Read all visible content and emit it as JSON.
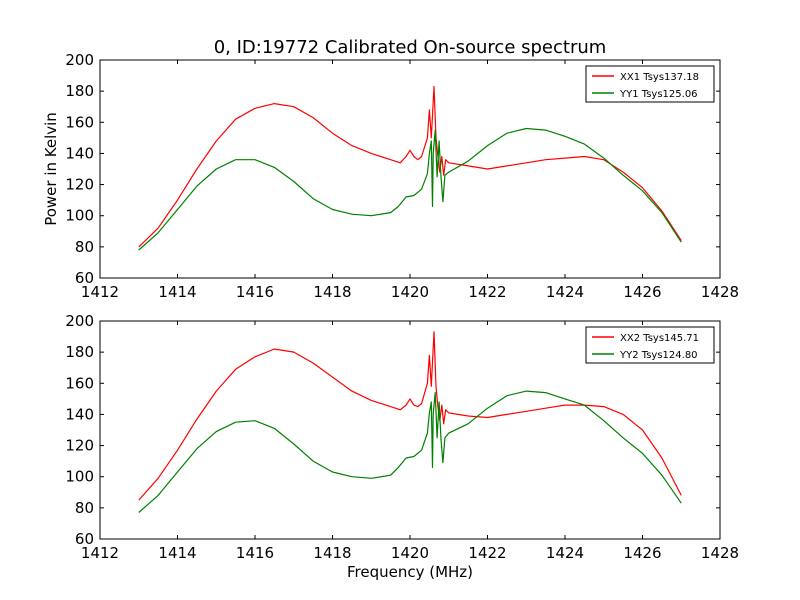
{
  "figure": {
    "title": "0, ID:19772 Calibrated On-source spectrum",
    "xlabel": "Frequency (MHz)",
    "ylabel_top": "Power in Kelvin"
  },
  "chart_data": [
    {
      "type": "line",
      "title": "0, ID:19772 Calibrated On-source spectrum",
      "xlabel": "",
      "ylabel": "Power in Kelvin",
      "xlim": [
        1412,
        1428
      ],
      "ylim": [
        60,
        200
      ],
      "xticks": [
        1412,
        1414,
        1416,
        1418,
        1420,
        1422,
        1424,
        1426,
        1428
      ],
      "yticks": [
        60,
        80,
        100,
        120,
        140,
        160,
        180,
        200
      ],
      "grid": false,
      "legend_position": "top-right",
      "series": [
        {
          "name": "XX1 Tsys137.18",
          "color": "#ff0000",
          "points": [
            [
              1413.0,
              80
            ],
            [
              1413.5,
              92
            ],
            [
              1414.0,
              110
            ],
            [
              1414.5,
              130
            ],
            [
              1415.0,
              148
            ],
            [
              1415.5,
              162
            ],
            [
              1416.0,
              169
            ],
            [
              1416.5,
              172
            ],
            [
              1417.0,
              170
            ],
            [
              1417.5,
              163
            ],
            [
              1418.0,
              153
            ],
            [
              1418.5,
              145
            ],
            [
              1419.0,
              140
            ],
            [
              1419.5,
              136
            ],
            [
              1419.75,
              134
            ],
            [
              1419.9,
              138
            ],
            [
              1420.0,
              142
            ],
            [
              1420.1,
              138
            ],
            [
              1420.2,
              136
            ],
            [
              1420.3,
              138
            ],
            [
              1420.45,
              150
            ],
            [
              1420.5,
              168
            ],
            [
              1420.55,
              150
            ],
            [
              1420.62,
              183
            ],
            [
              1420.67,
              150
            ],
            [
              1420.72,
              138
            ],
            [
              1420.77,
              128
            ],
            [
              1420.82,
              138
            ],
            [
              1420.87,
              126
            ],
            [
              1420.92,
              136
            ],
            [
              1421.0,
              134
            ],
            [
              1421.5,
              132
            ],
            [
              1422.0,
              130
            ],
            [
              1422.5,
              132
            ],
            [
              1423.0,
              134
            ],
            [
              1423.5,
              136
            ],
            [
              1424.0,
              137
            ],
            [
              1424.5,
              138
            ],
            [
              1425.0,
              136
            ],
            [
              1425.5,
              128
            ],
            [
              1426.0,
              118
            ],
            [
              1426.5,
              103
            ],
            [
              1427.0,
              84
            ]
          ]
        },
        {
          "name": "YY1 Tsys125.06",
          "color": "#008000",
          "points": [
            [
              1413.0,
              78
            ],
            [
              1413.5,
              89
            ],
            [
              1414.0,
              104
            ],
            [
              1414.5,
              119
            ],
            [
              1415.0,
              130
            ],
            [
              1415.5,
              136
            ],
            [
              1416.0,
              136
            ],
            [
              1416.5,
              131
            ],
            [
              1417.0,
              122
            ],
            [
              1417.5,
              111
            ],
            [
              1418.0,
              104
            ],
            [
              1418.5,
              101
            ],
            [
              1419.0,
              100
            ],
            [
              1419.5,
              102
            ],
            [
              1419.7,
              106
            ],
            [
              1419.9,
              112
            ],
            [
              1420.1,
              113
            ],
            [
              1420.3,
              117
            ],
            [
              1420.45,
              127
            ],
            [
              1420.5,
              140
            ],
            [
              1420.55,
              148
            ],
            [
              1420.58,
              106
            ],
            [
              1420.6,
              140
            ],
            [
              1420.65,
              155
            ],
            [
              1420.7,
              125
            ],
            [
              1420.75,
              148
            ],
            [
              1420.8,
              125
            ],
            [
              1420.85,
              109
            ],
            [
              1420.9,
              126
            ],
            [
              1421.0,
              128
            ],
            [
              1421.5,
              135
            ],
            [
              1422.0,
              145
            ],
            [
              1422.5,
              153
            ],
            [
              1423.0,
              156
            ],
            [
              1423.5,
              155
            ],
            [
              1424.0,
              151
            ],
            [
              1424.5,
              146
            ],
            [
              1425.0,
              137
            ],
            [
              1425.5,
              126
            ],
            [
              1426.0,
              116
            ],
            [
              1426.5,
              102
            ],
            [
              1427.0,
              83
            ]
          ]
        }
      ]
    },
    {
      "type": "line",
      "title": "",
      "xlabel": "Frequency (MHz)",
      "ylabel": "",
      "xlim": [
        1412,
        1428
      ],
      "ylim": [
        60,
        200
      ],
      "xticks": [
        1412,
        1414,
        1416,
        1418,
        1420,
        1422,
        1424,
        1426,
        1428
      ],
      "yticks": [
        60,
        80,
        100,
        120,
        140,
        160,
        180,
        200
      ],
      "grid": false,
      "legend_position": "top-right",
      "series": [
        {
          "name": "XX2 Tsys145.71",
          "color": "#ff0000",
          "points": [
            [
              1413.0,
              85
            ],
            [
              1413.5,
              99
            ],
            [
              1414.0,
              117
            ],
            [
              1414.5,
              137
            ],
            [
              1415.0,
              155
            ],
            [
              1415.5,
              169
            ],
            [
              1416.0,
              177
            ],
            [
              1416.5,
              182
            ],
            [
              1417.0,
              180
            ],
            [
              1417.5,
              173
            ],
            [
              1418.0,
              164
            ],
            [
              1418.5,
              155
            ],
            [
              1419.0,
              149
            ],
            [
              1419.5,
              145
            ],
            [
              1419.75,
              143
            ],
            [
              1419.9,
              146
            ],
            [
              1420.0,
              150
            ],
            [
              1420.1,
              146
            ],
            [
              1420.2,
              145
            ],
            [
              1420.3,
              147
            ],
            [
              1420.45,
              160
            ],
            [
              1420.5,
              178
            ],
            [
              1420.55,
              158
            ],
            [
              1420.62,
              193
            ],
            [
              1420.67,
              158
            ],
            [
              1420.72,
              145
            ],
            [
              1420.77,
              136
            ],
            [
              1420.82,
              146
            ],
            [
              1420.87,
              134
            ],
            [
              1420.92,
              143
            ],
            [
              1421.0,
              141
            ],
            [
              1421.5,
              139
            ],
            [
              1422.0,
              138
            ],
            [
              1422.5,
              140
            ],
            [
              1423.0,
              142
            ],
            [
              1423.5,
              144
            ],
            [
              1424.0,
              146
            ],
            [
              1424.5,
              146
            ],
            [
              1425.0,
              145
            ],
            [
              1425.5,
              140
            ],
            [
              1426.0,
              130
            ],
            [
              1426.5,
              112
            ],
            [
              1427.0,
              88
            ]
          ]
        },
        {
          "name": "YY2 Tsys124.80",
          "color": "#008000",
          "points": [
            [
              1413.0,
              77
            ],
            [
              1413.5,
              88
            ],
            [
              1414.0,
              103
            ],
            [
              1414.5,
              118
            ],
            [
              1415.0,
              129
            ],
            [
              1415.5,
              135
            ],
            [
              1416.0,
              136
            ],
            [
              1416.5,
              131
            ],
            [
              1417.0,
              121
            ],
            [
              1417.5,
              110
            ],
            [
              1418.0,
              103
            ],
            [
              1418.5,
              100
            ],
            [
              1419.0,
              99
            ],
            [
              1419.5,
              101
            ],
            [
              1419.7,
              106
            ],
            [
              1419.9,
              112
            ],
            [
              1420.1,
              113
            ],
            [
              1420.3,
              117
            ],
            [
              1420.45,
              128
            ],
            [
              1420.5,
              141
            ],
            [
              1420.55,
              148
            ],
            [
              1420.58,
              106
            ],
            [
              1420.6,
              140
            ],
            [
              1420.65,
              154
            ],
            [
              1420.7,
              125
            ],
            [
              1420.75,
              148
            ],
            [
              1420.8,
              124
            ],
            [
              1420.85,
              109
            ],
            [
              1420.9,
              125
            ],
            [
              1421.0,
              128
            ],
            [
              1421.5,
              134
            ],
            [
              1422.0,
              144
            ],
            [
              1422.5,
              152
            ],
            [
              1423.0,
              155
            ],
            [
              1423.5,
              154
            ],
            [
              1424.0,
              150
            ],
            [
              1424.5,
              146
            ],
            [
              1425.0,
              136
            ],
            [
              1425.5,
              125
            ],
            [
              1426.0,
              115
            ],
            [
              1426.5,
              101
            ],
            [
              1427.0,
              83
            ]
          ]
        }
      ]
    }
  ]
}
